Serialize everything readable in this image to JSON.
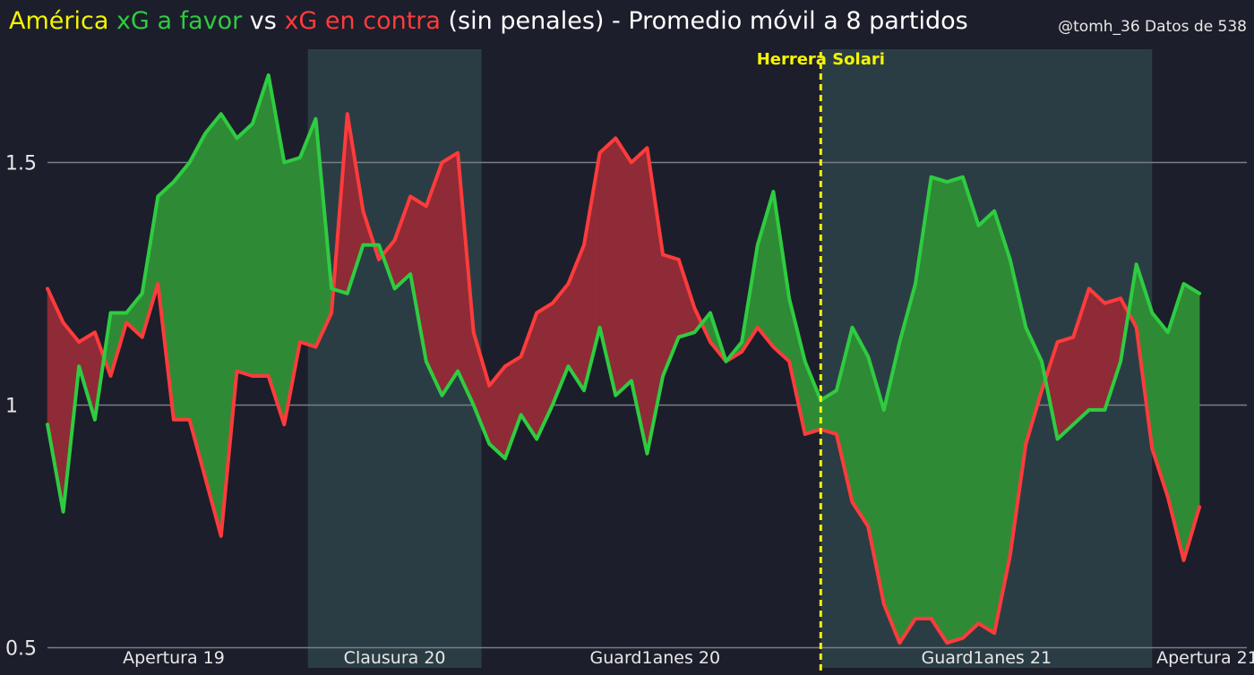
{
  "header": {
    "title_parts": [
      {
        "text": "América",
        "color": "#f5f500"
      },
      {
        "text": " xG a favor",
        "color": "#2ecc40"
      },
      {
        "text": " vs ",
        "color": "#ffffff"
      },
      {
        "text": "xG en contra",
        "color": "#ff3b3b"
      },
      {
        "text": " (sin penales) - Promedio móvil a 8 partidos",
        "color": "#ffffff"
      }
    ],
    "credit": "@tomh_36   Datos de 538"
  },
  "chart_data": {
    "type": "area",
    "title": "América xG a favor vs xG en contra (sin penales) - Promedio móvil a 8 partidos",
    "ylim": [
      0.5,
      1.75
    ],
    "y_ticks": [
      0.5,
      1,
      1.5
    ],
    "y_tick_labels": [
      "0.5",
      "1",
      "1.5"
    ],
    "grid": true,
    "x_count": 77,
    "colors": {
      "xg_for": "#2ecc40",
      "xg_against": "#ff3b3b",
      "fill_for": "#2f8a36",
      "fill_against": "#8e2b36",
      "season_band": "#2b3d44",
      "annotation": "#f5f500"
    },
    "series": [
      {
        "name": "xG a favor",
        "values": [
          0.96,
          0.78,
          1.08,
          0.97,
          1.19,
          1.19,
          1.23,
          1.43,
          1.46,
          1.5,
          1.56,
          1.6,
          1.55,
          1.58,
          1.68,
          1.5,
          1.51,
          1.59,
          1.24,
          1.23,
          1.33,
          1.33,
          1.24,
          1.27,
          1.09,
          1.02,
          1.07,
          1.0,
          0.92,
          0.89,
          0.98,
          0.93,
          1.0,
          1.08,
          1.03,
          1.16,
          1.02,
          1.05,
          0.9,
          1.06,
          1.14,
          1.15,
          1.19,
          1.09,
          1.13,
          1.33,
          1.44,
          1.22,
          1.09,
          1.01,
          1.03,
          1.16,
          1.1,
          0.99,
          1.13,
          1.25,
          1.47,
          1.46,
          1.47,
          1.37,
          1.4,
          1.3,
          1.16,
          1.09,
          0.93,
          0.96,
          0.99,
          0.99,
          1.09,
          1.29,
          1.19,
          1.15,
          1.25,
          1.23
        ]
      },
      {
        "name": "xG en contra",
        "values": [
          1.24,
          1.17,
          1.13,
          1.15,
          1.06,
          1.17,
          1.14,
          1.25,
          0.97,
          0.97,
          0.85,
          0.73,
          1.07,
          1.06,
          1.06,
          0.96,
          1.13,
          1.12,
          1.19,
          1.6,
          1.4,
          1.3,
          1.34,
          1.43,
          1.41,
          1.5,
          1.52,
          1.15,
          1.04,
          1.08,
          1.1,
          1.19,
          1.21,
          1.25,
          1.33,
          1.52,
          1.55,
          1.5,
          1.53,
          1.31,
          1.3,
          1.2,
          1.13,
          1.09,
          1.11,
          1.16,
          1.12,
          1.09,
          0.94,
          0.95,
          0.94,
          0.8,
          0.75,
          0.59,
          0.51,
          0.56,
          0.56,
          0.51,
          0.52,
          0.55,
          0.53,
          0.69,
          0.92,
          1.03,
          1.13,
          1.14,
          1.24,
          1.21,
          1.22,
          1.16,
          0.91,
          0.81,
          0.68,
          0.79
        ]
      }
    ],
    "season_bands": [
      {
        "start": 16.5,
        "end": 27.5
      },
      {
        "start": 49,
        "end": 70
      }
    ],
    "season_labels": [
      {
        "text": "Apertura 19",
        "x": 8
      },
      {
        "text": "Clausura 20",
        "x": 22
      },
      {
        "text": "Guard1anes 20",
        "x": 38.5
      },
      {
        "text": "Guard1anes 21",
        "x": 59.5
      },
      {
        "text": "Apertura 21",
        "x": 73.5
      }
    ],
    "annotations": [
      {
        "text": "Herrera Solari",
        "x": 49
      }
    ]
  }
}
